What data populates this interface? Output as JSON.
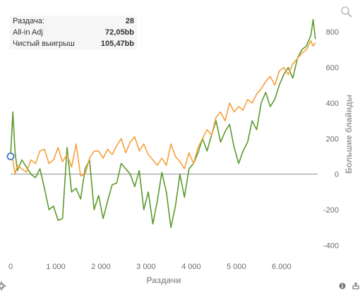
{
  "info": {
    "rows": [
      {
        "label": "Раздача:",
        "value": "28"
      },
      {
        "label": "All-in Adj",
        "value": "72,05bb"
      },
      {
        "label": "Чистый выигрыш",
        "value": "105,47bb"
      }
    ]
  },
  "colors": {
    "green": "#5b9a2c",
    "orange": "#f5a03c",
    "zero_line": "#8a8a8a",
    "marker": "#4f7fd0"
  },
  "icons": {
    "zoom": "zoom-icon",
    "settings": "gear-icon",
    "info": "info-icon",
    "export": "export-icon"
  },
  "chart_data": {
    "type": "line",
    "xlabel": "Раздачи",
    "ylabel": "Большие блайнды",
    "xlim": [
      0,
      6800
    ],
    "ylim": [
      -450,
      900
    ],
    "x_ticks": [
      0,
      1000,
      2000,
      3000,
      4000,
      5000,
      6000
    ],
    "x_tick_labels": [
      "0",
      "1 000",
      "2 000",
      "3 000",
      "4 000",
      "5 000",
      "6.000"
    ],
    "y_ticks": [
      -400,
      -200,
      0,
      200,
      400,
      600,
      800
    ],
    "y_tick_labels": [
      "-400",
      "-200",
      "0",
      "200",
      "400",
      "600",
      "800"
    ],
    "y_axis_position": "right",
    "grid": false,
    "legend": "none",
    "series": [
      {
        "color": "#5b9a2c",
        "x": [
          0,
          50,
          100,
          150,
          250,
          350,
          450,
          550,
          650,
          750,
          850,
          950,
          1050,
          1150,
          1250,
          1350,
          1450,
          1550,
          1650,
          1750,
          1850,
          1950,
          2050,
          2150,
          2250,
          2350,
          2450,
          2550,
          2650,
          2750,
          2850,
          2950,
          3050,
          3150,
          3250,
          3350,
          3450,
          3550,
          3650,
          3750,
          3850,
          3950,
          4050,
          4150,
          4250,
          4350,
          4450,
          4550,
          4650,
          4750,
          4850,
          4950,
          5050,
          5150,
          5250,
          5350,
          5450,
          5550,
          5650,
          5750,
          5850,
          5950,
          6050,
          6150,
          6250,
          6350,
          6450,
          6550,
          6650,
          6700,
          6750
        ],
        "y": [
          100,
          350,
          120,
          20,
          80,
          40,
          0,
          -20,
          30,
          -80,
          -200,
          -180,
          -260,
          -250,
          150,
          -100,
          -80,
          -140,
          30,
          80,
          -200,
          -120,
          -250,
          -150,
          -60,
          -50,
          60,
          30,
          0,
          -70,
          20,
          -200,
          -100,
          -280,
          -150,
          10,
          -100,
          -300,
          -180,
          0,
          -130,
          30,
          60,
          120,
          200,
          130,
          220,
          300,
          180,
          240,
          280,
          150,
          60,
          130,
          180,
          300,
          250,
          400,
          460,
          380,
          420,
          500,
          560,
          600,
          540,
          650,
          700,
          720,
          780,
          870,
          760
        ]
      },
      {
        "color": "#f5a03c",
        "x": [
          0,
          50,
          100,
          150,
          250,
          350,
          450,
          550,
          650,
          750,
          850,
          950,
          1050,
          1150,
          1250,
          1350,
          1450,
          1550,
          1650,
          1750,
          1850,
          1950,
          2050,
          2150,
          2250,
          2350,
          2450,
          2550,
          2650,
          2750,
          2850,
          2950,
          3050,
          3150,
          3250,
          3350,
          3450,
          3550,
          3650,
          3750,
          3850,
          3950,
          4050,
          4150,
          4250,
          4350,
          4450,
          4550,
          4650,
          4750,
          4850,
          4950,
          5050,
          5150,
          5250,
          5350,
          5450,
          5550,
          5650,
          5750,
          5850,
          5950,
          6050,
          6150,
          6250,
          6350,
          6450,
          6550,
          6650,
          6700,
          6750
        ],
        "y": [
          100,
          80,
          0,
          50,
          30,
          10,
          80,
          60,
          130,
          140,
          60,
          80,
          150,
          70,
          110,
          40,
          170,
          -10,
          0,
          90,
          130,
          130,
          90,
          140,
          110,
          160,
          200,
          120,
          180,
          210,
          130,
          170,
          110,
          80,
          50,
          90,
          50,
          170,
          100,
          70,
          30,
          120,
          60,
          150,
          200,
          250,
          220,
          320,
          350,
          300,
          400,
          350,
          380,
          360,
          420,
          400,
          450,
          480,
          520,
          550,
          500,
          580,
          600,
          560,
          620,
          650,
          680,
          700,
          750,
          720,
          740
        ]
      }
    ]
  }
}
